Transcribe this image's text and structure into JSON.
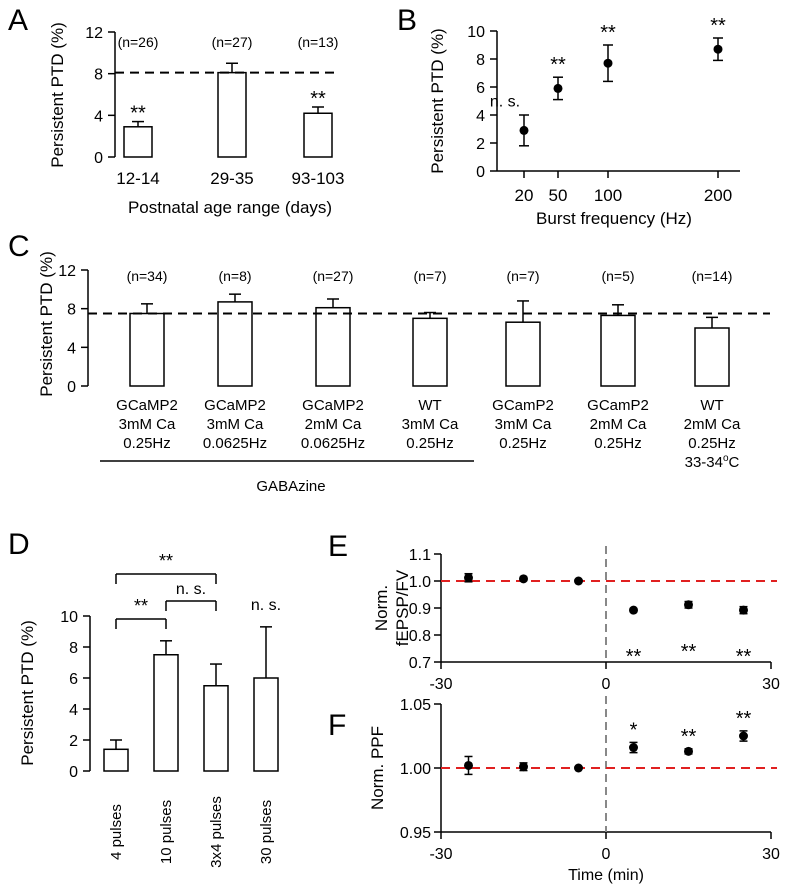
{
  "colors": {
    "ink": "#000000",
    "red_dash": "#e02020",
    "grey_dash": "#888888",
    "bar_fill": "#ffffff"
  },
  "chart_data": [
    {
      "panel": "A",
      "type": "bar",
      "categories": [
        "12-14",
        "29-35",
        "93-103"
      ],
      "values": [
        2.9,
        8.1,
        4.2
      ],
      "errors": [
        0.5,
        0.9,
        0.6
      ],
      "n_labels": [
        "(n=26)",
        "(n=27)",
        "(n=13)"
      ],
      "significance": [
        "**",
        "",
        "**"
      ],
      "reference_line": 8.1,
      "ylabel": "Persistent PTD (%)",
      "xlabel": "Postnatal age range (days)",
      "ylim": [
        0,
        12
      ],
      "yticks": [
        0,
        4,
        8,
        12
      ]
    },
    {
      "panel": "B",
      "type": "scatter",
      "x": [
        20,
        50,
        100,
        200
      ],
      "y": [
        2.9,
        5.9,
        7.7,
        8.7
      ],
      "errors": [
        1.1,
        0.8,
        1.3,
        0.8
      ],
      "significance": [
        "n. s.",
        "**",
        "**",
        "**"
      ],
      "ylabel": "Persistent PTD (%)",
      "xlabel": "Burst frequency (Hz)",
      "xticks": [
        20,
        50,
        100,
        200
      ],
      "ylim": [
        0,
        10
      ],
      "yticks": [
        0,
        2,
        4,
        6,
        8,
        10
      ]
    },
    {
      "panel": "C",
      "type": "bar",
      "categories": [
        [
          "GCaMP2",
          "3mM Ca",
          "0.25Hz"
        ],
        [
          "GCaMP2",
          "3mM Ca",
          "0.0625Hz"
        ],
        [
          "GCaMP2",
          "2mM Ca",
          "0.0625Hz"
        ],
        [
          "WT",
          "3mM Ca",
          "0.25Hz"
        ],
        [
          "GCamP2",
          "3mM Ca",
          "0.25Hz"
        ],
        [
          "GCamP2",
          "2mM Ca",
          "0.25Hz"
        ],
        [
          "WT",
          "2mM Ca",
          "0.25Hz",
          "33-34"
        ]
      ],
      "temp_superscript": "o",
      "temp_unit": "C",
      "values": [
        7.5,
        8.7,
        8.1,
        7.0,
        6.6,
        7.3,
        6.0
      ],
      "errors": [
        1.0,
        0.8,
        0.9,
        0.6,
        2.2,
        1.1,
        1.1
      ],
      "n_labels": [
        "(n=34)",
        "(n=8)",
        "(n=27)",
        "(n=7)",
        "(n=7)",
        "(n=5)",
        "(n=14)"
      ],
      "reference_line": 7.5,
      "group_label": "GABAzine",
      "ylabel": "Persistent PTD (%)",
      "ylim": [
        0,
        12
      ],
      "yticks": [
        0,
        4,
        8,
        12
      ]
    },
    {
      "panel": "D",
      "type": "bar",
      "categories": [
        "4 pulses",
        "10 pulses",
        "3x4 pulses",
        "30 pulses"
      ],
      "values": [
        1.4,
        7.5,
        5.5,
        6.0
      ],
      "errors": [
        0.6,
        0.9,
        1.4,
        3.3
      ],
      "brackets": [
        {
          "from": 0,
          "to": 2,
          "label": "**"
        },
        {
          "from": 1,
          "to": 2,
          "label": "n. s."
        },
        {
          "from": 0,
          "to": 1,
          "label": "**"
        }
      ],
      "bar_annotations": [
        "",
        "",
        "",
        "n. s."
      ],
      "ylabel": "Persistent PTD (%)",
      "ylim": [
        0,
        10
      ],
      "yticks": [
        0,
        2,
        4,
        6,
        8,
        10
      ]
    },
    {
      "panel": "E",
      "type": "scatter",
      "x": [
        -25,
        -15,
        -5,
        5,
        15,
        25
      ],
      "y": [
        1.012,
        1.008,
        1.0,
        0.892,
        0.912,
        0.892
      ],
      "errors": [
        0.015,
        0.006,
        0.005,
        0.006,
        0.012,
        0.013
      ],
      "significance": [
        "",
        "",
        "",
        "**",
        "**",
        "**"
      ],
      "reference_line": 1.0,
      "vline": 0,
      "ylabel_lines": [
        "Norm.",
        "fEPSP/FV"
      ],
      "xlim": [
        -30,
        30
      ],
      "xticks": [
        -30,
        0,
        30
      ],
      "ylim": [
        0.7,
        1.1
      ],
      "yticks": [
        0.7,
        0.8,
        0.9,
        1.0,
        1.1
      ],
      "ytick_labels": [
        "0.7",
        "0.8",
        "0.9",
        "1.0",
        "1.1"
      ]
    },
    {
      "panel": "F",
      "type": "scatter",
      "x": [
        -25,
        -15,
        -5,
        5,
        15,
        25
      ],
      "y": [
        1.002,
        1.001,
        1.0,
        1.016,
        1.013,
        1.025
      ],
      "errors": [
        0.007,
        0.003,
        0.001,
        0.004,
        0.002,
        0.004
      ],
      "significance": [
        "",
        "",
        "",
        "*",
        "**",
        "**"
      ],
      "reference_line": 1.0,
      "vline": 0,
      "ylabel_lines": [
        "Norm. PPF"
      ],
      "xlabel": "Time (min)",
      "xlim": [
        -30,
        30
      ],
      "xticks": [
        -30,
        0,
        30
      ],
      "ylim": [
        0.95,
        1.05
      ],
      "yticks": [
        0.95,
        1.0,
        1.05
      ],
      "ytick_labels": [
        "0.95",
        "1.00",
        "1.05"
      ]
    }
  ]
}
